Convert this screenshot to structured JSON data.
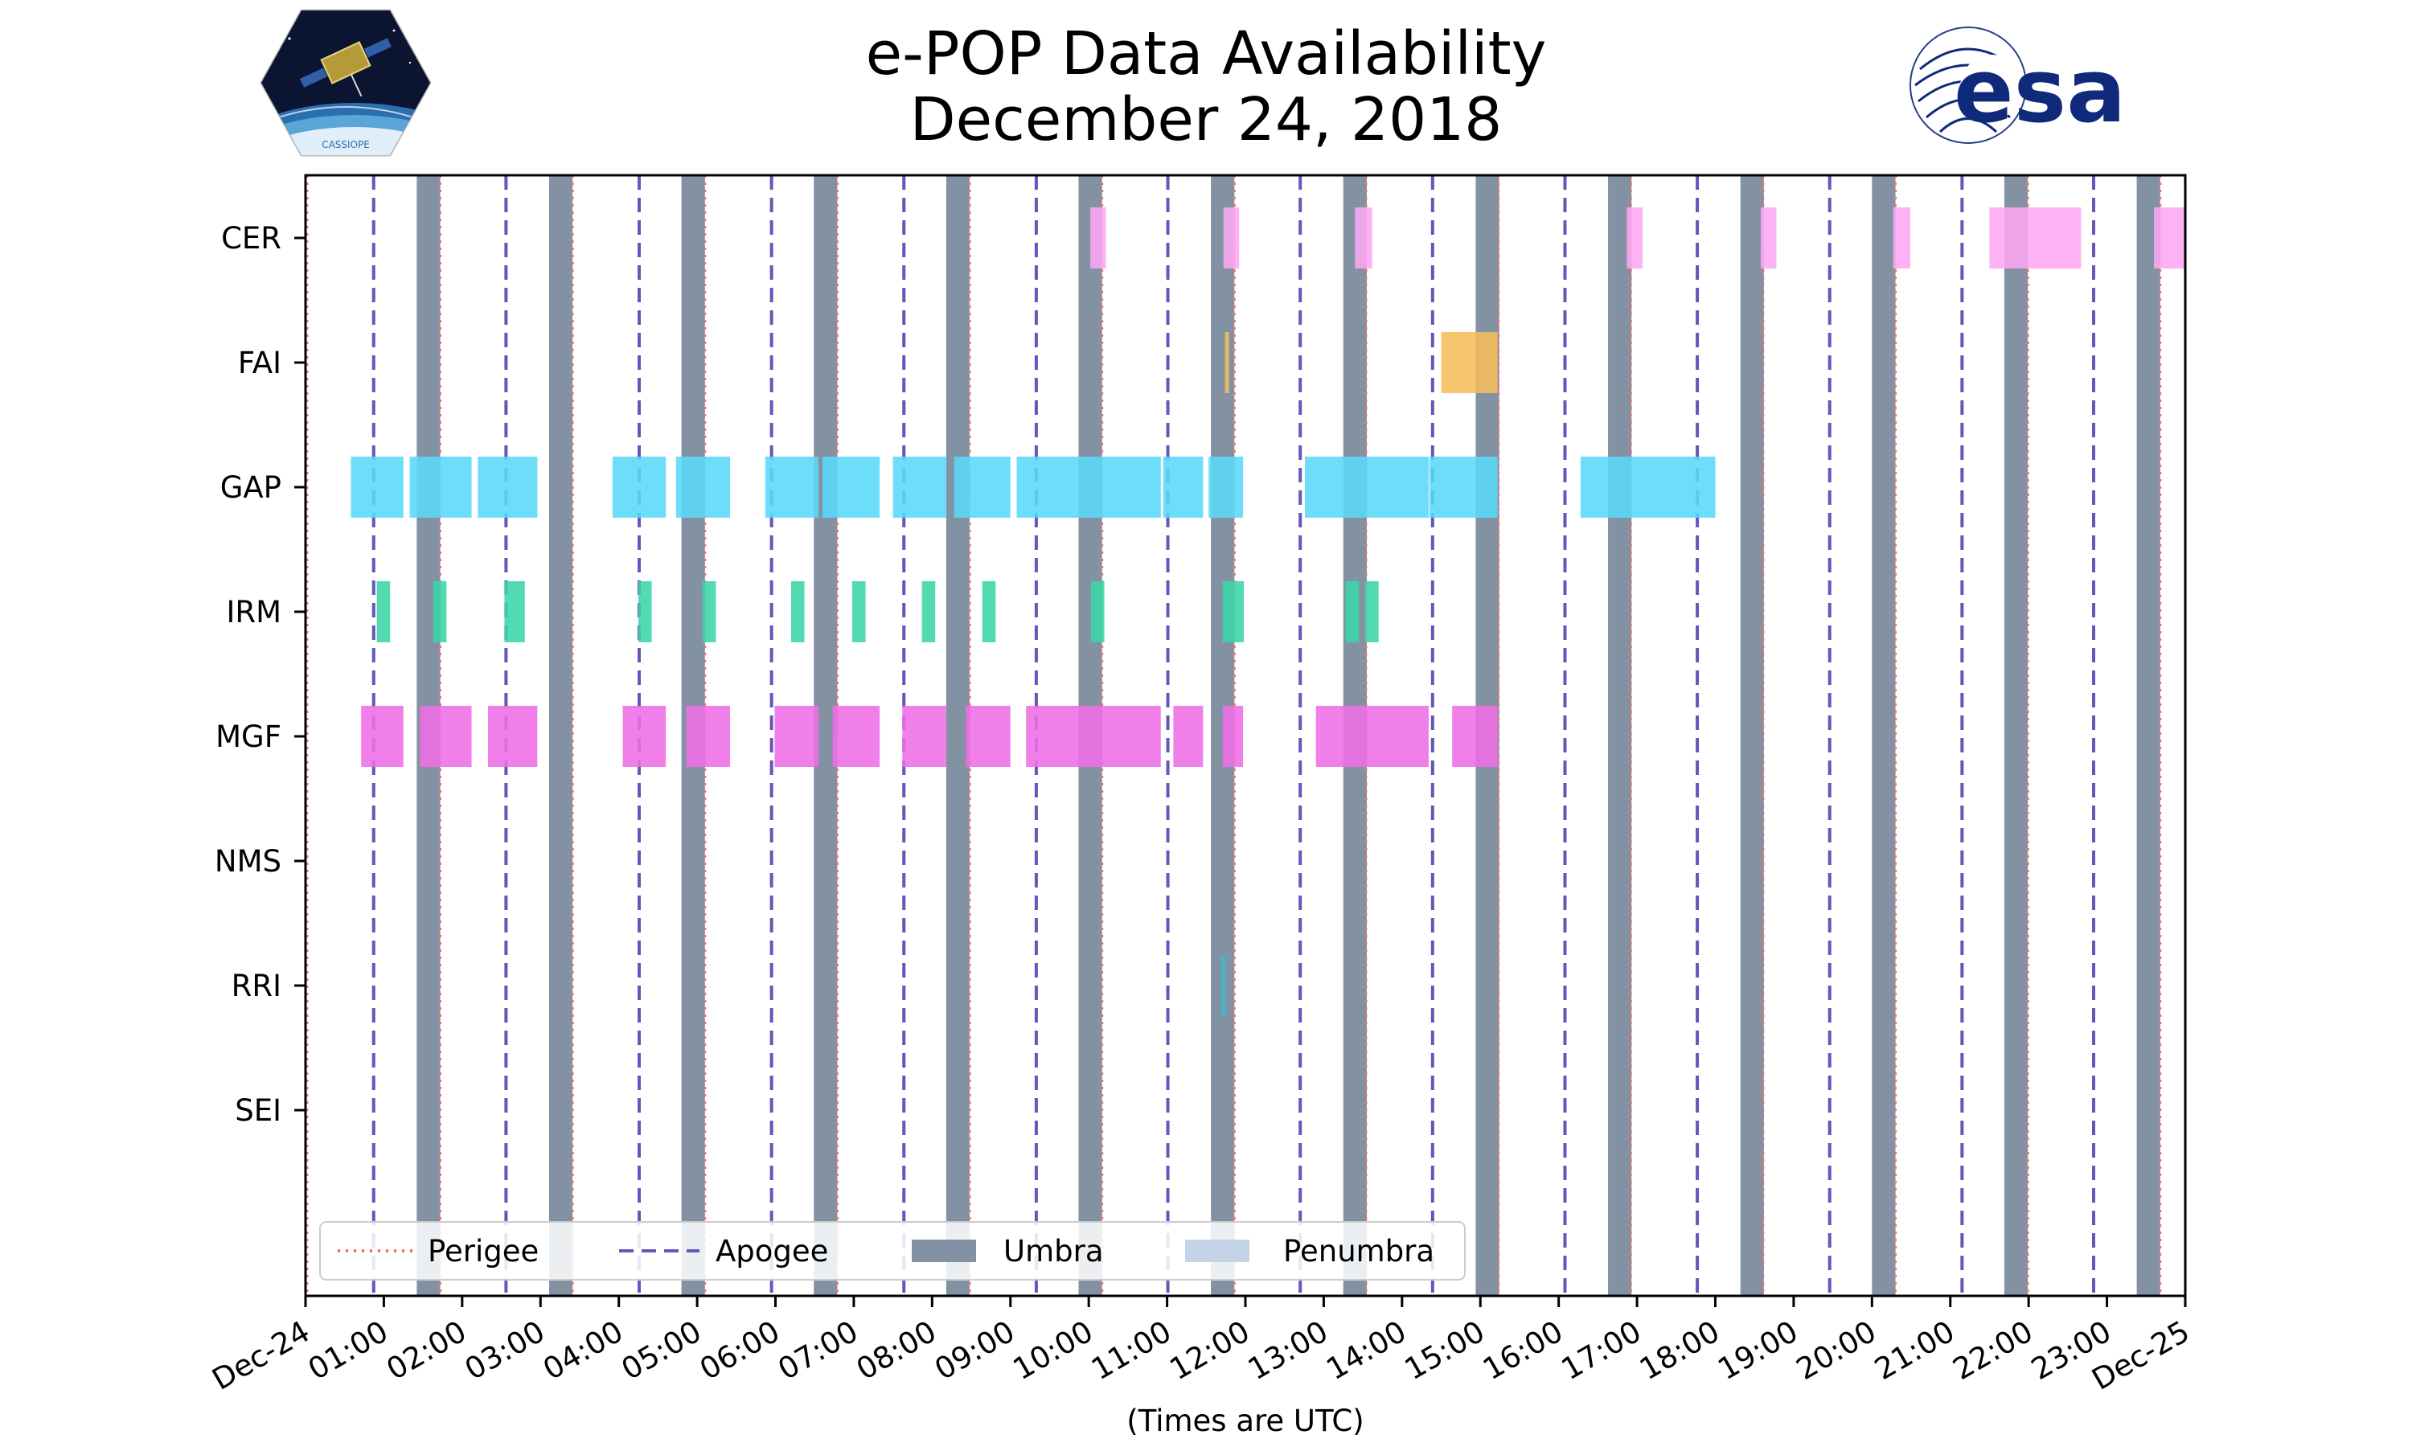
{
  "header": {
    "title_line1": "e-POP Data Availability",
    "title_line2": "December 24, 2018"
  },
  "logos": {
    "left": {
      "name": "cassiope-mission-logo",
      "text": "CASSIOPE"
    },
    "right": {
      "name": "esa-logo",
      "text": "esa"
    }
  },
  "colors": {
    "umbra": "#8292a3",
    "penumbra": "#c5d3e6",
    "perigee": "#f07070",
    "apogee": "#6655bb",
    "CER": "#fca7f2",
    "FAI": "#f5be5b",
    "GAP": "#5ad8f8",
    "IRM": "#3ad6a8",
    "MGF": "#ef6de6",
    "NMS": "#999999",
    "RRI": "#40b8d0",
    "SEI": "#999999",
    "esa_blue": "#0f2a7a"
  },
  "chart_data": {
    "type": "timeline",
    "title": "e-POP Data Availability December 24, 2018",
    "xlabel": "(Times are UTC)",
    "xlim_hours": [
      0,
      24
    ],
    "xticks": [
      "Dec-24",
      "01:00",
      "02:00",
      "03:00",
      "04:00",
      "05:00",
      "06:00",
      "07:00",
      "08:00",
      "09:00",
      "10:00",
      "11:00",
      "12:00",
      "13:00",
      "14:00",
      "15:00",
      "16:00",
      "17:00",
      "18:00",
      "19:00",
      "20:00",
      "21:00",
      "22:00",
      "23:00",
      "Dec-25"
    ],
    "instruments": [
      "CER",
      "FAI",
      "GAP",
      "IRM",
      "MGF",
      "NMS",
      "RRI",
      "SEI"
    ],
    "perigee_hours": [
      0.02,
      1.72,
      3.41,
      5.1,
      6.79,
      8.48,
      10.17,
      11.86,
      13.54,
      15.23,
      16.92,
      18.61,
      20.3,
      21.99,
      23.68
    ],
    "apogee_hours": [
      0.87,
      2.56,
      4.26,
      5.95,
      7.64,
      9.33,
      11.01,
      12.7,
      14.39,
      16.08,
      17.77,
      19.46,
      21.15,
      22.83
    ],
    "umbra_hours": [
      [
        1.42,
        1.72
      ],
      [
        3.11,
        3.41
      ],
      [
        4.8,
        5.1
      ],
      [
        6.49,
        6.79
      ],
      [
        8.18,
        8.48
      ],
      [
        9.87,
        10.17
      ],
      [
        11.56,
        11.86
      ],
      [
        13.25,
        13.55
      ],
      [
        14.94,
        15.24
      ],
      [
        16.63,
        16.93
      ],
      [
        18.32,
        18.62
      ],
      [
        20.0,
        20.3
      ],
      [
        21.69,
        21.99
      ],
      [
        23.38,
        23.68
      ]
    ],
    "penumbra_hours": [],
    "availability": {
      "CER": [
        [
          10.02,
          10.22
        ],
        [
          11.72,
          11.92
        ],
        [
          13.4,
          13.62
        ],
        [
          16.87,
          17.07
        ],
        [
          18.58,
          18.78
        ],
        [
          20.27,
          20.49
        ],
        [
          21.5,
          22.67
        ],
        [
          23.6,
          24.0
        ]
      ],
      "FAI": [
        [
          11.74,
          11.79
        ],
        [
          14.5,
          15.22
        ]
      ],
      "GAP": [
        [
          0.58,
          1.25
        ],
        [
          1.33,
          2.12
        ],
        [
          2.2,
          2.96
        ],
        [
          3.92,
          4.6
        ],
        [
          4.73,
          5.42
        ],
        [
          5.87,
          6.55
        ],
        [
          6.6,
          7.33
        ],
        [
          7.5,
          8.18
        ],
        [
          8.28,
          9.0
        ],
        [
          9.08,
          10.92
        ],
        [
          10.95,
          11.46
        ],
        [
          11.53,
          11.97
        ],
        [
          12.76,
          14.34
        ],
        [
          14.35,
          15.22
        ],
        [
          16.28,
          18.0
        ]
      ],
      "IRM": [
        [
          0.91,
          1.08
        ],
        [
          1.63,
          1.8
        ],
        [
          2.54,
          2.8
        ],
        [
          4.25,
          4.42
        ],
        [
          5.07,
          5.24
        ],
        [
          6.2,
          6.37
        ],
        [
          6.98,
          7.15
        ],
        [
          7.87,
          8.04
        ],
        [
          8.64,
          8.81
        ],
        [
          10.03,
          10.2
        ],
        [
          11.71,
          11.98
        ],
        [
          13.28,
          13.45
        ],
        [
          13.53,
          13.7
        ]
      ],
      "MGF": [
        [
          0.71,
          1.25
        ],
        [
          1.46,
          2.12
        ],
        [
          2.33,
          2.96
        ],
        [
          4.05,
          4.6
        ],
        [
          4.86,
          5.42
        ],
        [
          5.99,
          6.55
        ],
        [
          6.73,
          7.33
        ],
        [
          7.62,
          8.18
        ],
        [
          8.43,
          9.0
        ],
        [
          9.2,
          10.92
        ],
        [
          11.08,
          11.46
        ],
        [
          11.71,
          11.97
        ],
        [
          12.9,
          14.34
        ],
        [
          14.64,
          15.22
        ]
      ],
      "NMS": [],
      "RRI": [
        [
          11.69,
          11.74
        ]
      ],
      "SEI": []
    },
    "legend": {
      "location": "lower-left",
      "entries": [
        {
          "label": "Perigee",
          "style": "dotted"
        },
        {
          "label": "Apogee",
          "style": "dashed"
        },
        {
          "label": "Umbra",
          "style": "patch"
        },
        {
          "label": "Penumbra",
          "style": "patch"
        }
      ]
    }
  }
}
